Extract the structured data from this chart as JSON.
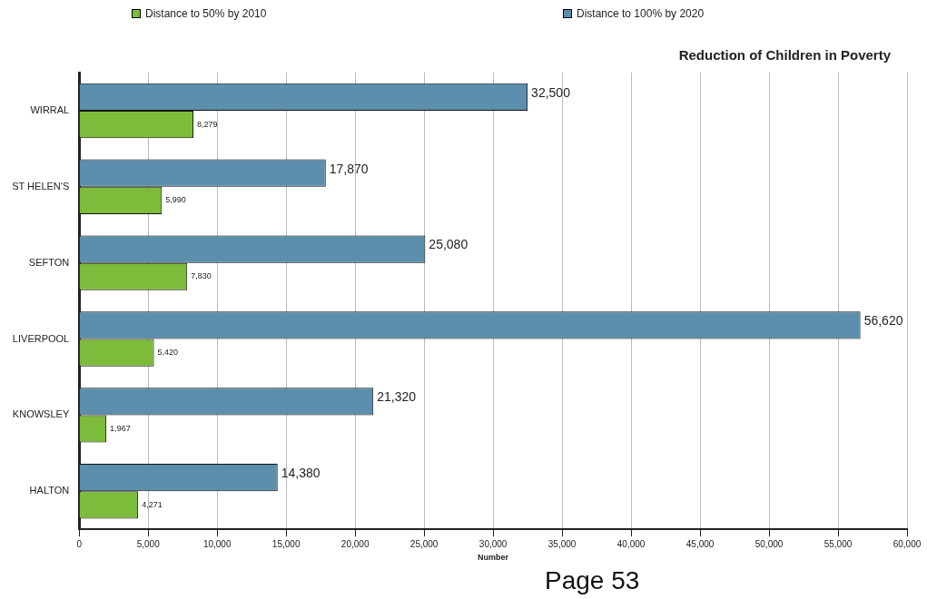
{
  "chart_data": {
    "type": "bar",
    "orientation": "horizontal",
    "title": "Reduction of Children in Poverty",
    "xlabel": "Number",
    "categories": [
      "WIRRAL",
      "ST HELEN'S",
      "SEFTON",
      "LIVERPOOL",
      "KNOWSLEY",
      "HALTON"
    ],
    "series": [
      {
        "name": "Distance to 100% by 2020",
        "color": "#5b8fad",
        "values": [
          32500,
          17870,
          25080,
          56620,
          21320,
          14380
        ],
        "value_labels": [
          "32,500",
          "17,870",
          "25,080",
          "56,620",
          "21,320",
          "14,380"
        ]
      },
      {
        "name": "Distance to 50% by 2010",
        "color": "#7dbb3a",
        "values": [
          8279,
          5990,
          7830,
          5420,
          1967,
          4271
        ],
        "value_labels": [
          "8,279",
          "5,990",
          "7,830",
          "5,420",
          "1,967",
          "4,271"
        ]
      }
    ],
    "xlim": [
      0,
      60000
    ],
    "xticks": [
      {
        "value": 0,
        "label": "0"
      },
      {
        "value": 5000,
        "label": "5,000"
      },
      {
        "value": 10000,
        "label": "10,000"
      },
      {
        "value": 15000,
        "label": "15,000"
      },
      {
        "value": 20000,
        "label": "20,000"
      },
      {
        "value": 25000,
        "label": "25,000"
      },
      {
        "value": 30000,
        "label": "30,000"
      },
      {
        "value": 35000,
        "label": "35,000"
      },
      {
        "value": 40000,
        "label": "40,000"
      },
      {
        "value": 45000,
        "label": "45,000"
      },
      {
        "value": 50000,
        "label": "50,000"
      },
      {
        "value": 55000,
        "label": "55,000"
      },
      {
        "value": 60000,
        "label": "60,000"
      }
    ],
    "grid": "x",
    "legend": "top",
    "annotations": [
      "Page 53"
    ]
  }
}
